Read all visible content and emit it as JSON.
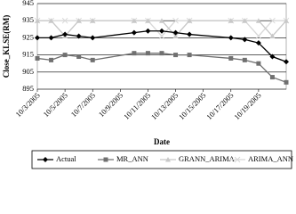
{
  "chart_data": {
    "type": "line",
    "y_label": "Close_KLSE(RM)",
    "x_label": "Date",
    "x": [
      "10/3/2005",
      "10/4/2005",
      "10/5/2005",
      "10/6/2005",
      "10/7/2005",
      "10/10/2005",
      "10/11/2005",
      "10/12/2005",
      "10/13/2005",
      "10/14/2005",
      "10/17/2005",
      "10/18/2005",
      "10/19/2005",
      "10/20/2005",
      "10/21/2005"
    ],
    "series": [
      {
        "name": "Actual",
        "color": "#000000",
        "marker": "diamond",
        "values": [
          925,
          925,
          927,
          926,
          925,
          928,
          929,
          929,
          928,
          927,
          925,
          924,
          922,
          914,
          911
        ]
      },
      {
        "name": "MR_ANN",
        "color": "#707070",
        "marker": "square",
        "values": [
          913,
          912,
          915,
          914,
          912,
          916,
          916,
          916,
          915,
          915,
          913,
          912,
          910,
          902,
          899
        ]
      },
      {
        "name": "GRANN_ARIMA",
        "color": "#c8c8c8",
        "marker": "triangle",
        "values": [
          935,
          935,
          926,
          935,
          935,
          935,
          935,
          935,
          926,
          935,
          935,
          935,
          935,
          926,
          935
        ]
      },
      {
        "name": "ARIMA_ANN",
        "color": "#d8d8d8",
        "marker": "cross",
        "values": [
          935,
          935,
          935,
          935,
          935,
          935,
          935,
          926,
          935,
          935,
          935,
          935,
          926,
          935,
          935
        ]
      }
    ],
    "xlim": [
      "10/3/2005",
      "10/21/2005"
    ],
    "xticks": [
      "10/3/2005",
      "10/5/2005",
      "10/7/2005",
      "10/9/2005",
      "10/11/2005",
      "10/13/2005",
      "10/15/2005",
      "10/17/2005",
      "10/19/2005"
    ],
    "ylim": [
      895,
      945
    ],
    "yticks": [
      895,
      905,
      915,
      925,
      935,
      945
    ],
    "grid": true
  }
}
